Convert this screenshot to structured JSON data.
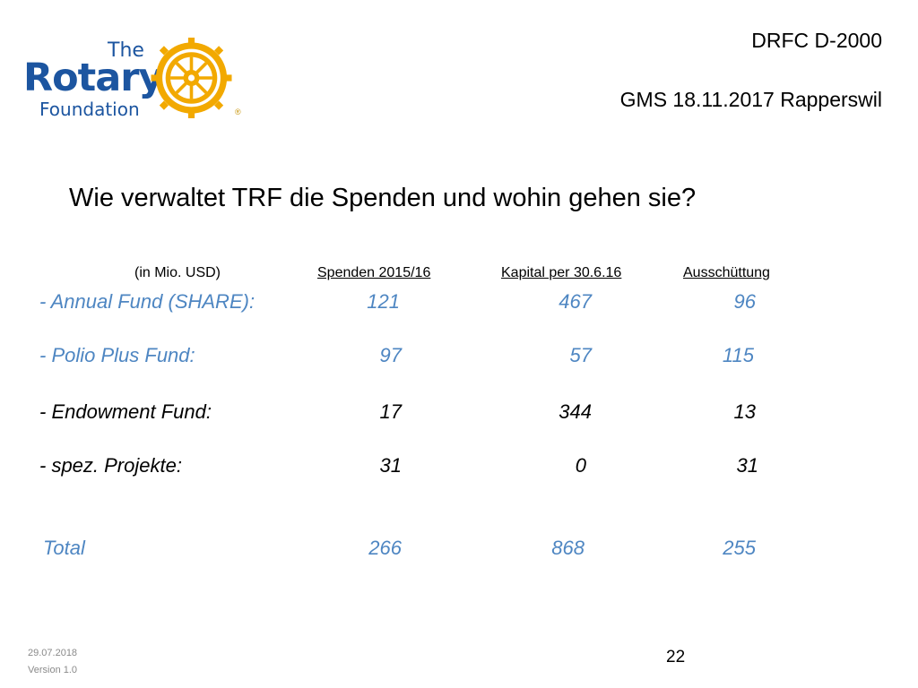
{
  "logo": {
    "the": "The",
    "rotary": "Rotary",
    "foundation": "Foundation",
    "emblem_icon": "rotary-wheel-icon",
    "reg_mark": "®"
  },
  "header": {
    "line1": "DRFC D-2000",
    "line2": "GMS 18.11.2017 Rapperswil"
  },
  "title": "Wie verwaltet TRF die Spenden und wohin gehen sie?",
  "table": {
    "headers": {
      "unit": "(in Mio. USD)",
      "col1": "Spenden 2015/16",
      "col2": "Kapital per 30.6.16",
      "col3": "Ausschüttung"
    },
    "rows": [
      {
        "label": "- Annual Fund (SHARE):",
        "col1": "121",
        "col2": "467",
        "col3": "96"
      },
      {
        "label": "- Polio Plus Fund:",
        "col1": "97",
        "col2": "57",
        "col3": "115"
      },
      {
        "label": "- Endowment Fund:",
        "col1": "17",
        "col2": "344",
        "col3": "13"
      },
      {
        "label": "- spez. Projekte:",
        "col1": "31",
        "col2": "0",
        "col3": "31"
      }
    ],
    "total": {
      "label": "Total",
      "col1": "266",
      "col2": "868",
      "col3": "255"
    }
  },
  "footer": {
    "date": "29.07.2018",
    "version": "Version 1.0",
    "page": "22"
  },
  "colors": {
    "brand_blue": "#1c55a0",
    "brand_gold": "#f2a900",
    "highlight_blue": "#4e86c2"
  }
}
